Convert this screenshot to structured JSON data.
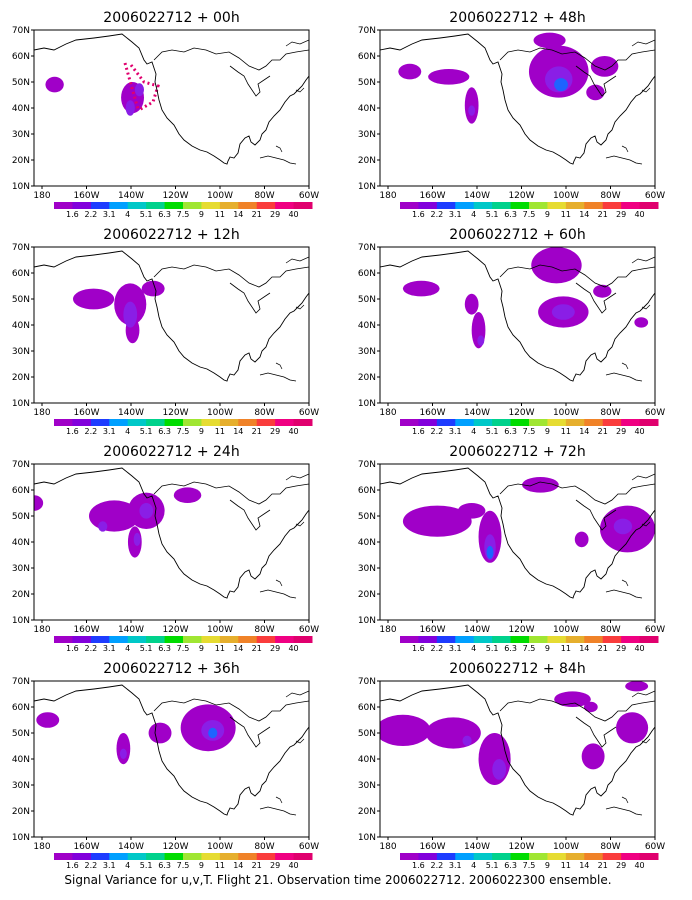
{
  "figure": {
    "caption": "Signal Variance for u,v,T. Flight 21. Observation time 2006022712. 2006022300 ensemble."
  },
  "map": {
    "lon_ticks": [
      "180",
      "160W",
      "140W",
      "120W",
      "100W",
      "80W",
      "60W"
    ],
    "lat_ticks": [
      "10N",
      "20N",
      "30N",
      "40N",
      "50N",
      "60N",
      "70N"
    ],
    "lon_range": [
      -180,
      -60
    ],
    "lat_range": [
      10,
      70
    ]
  },
  "colorbar": {
    "levels": [
      "1.6",
      "2.2",
      "3.1",
      "4",
      "5.1",
      "6.3",
      "7.5",
      "9",
      "11",
      "14",
      "21",
      "29",
      "40"
    ],
    "colors": [
      "#a000c8",
      "#8200dc",
      "#1e3cff",
      "#00a0ff",
      "#00c8c8",
      "#00d28c",
      "#00dc00",
      "#a0e632",
      "#e6dc32",
      "#e6af2d",
      "#f08228",
      "#fa3c3c",
      "#f00082",
      "#e0006e"
    ]
  },
  "panels": [
    {
      "title": "2006022712 + 00h",
      "blobs": [
        {
          "lon": -171,
          "lat": 49,
          "rx": 4,
          "ry": 3,
          "level": 0
        },
        {
          "lon": -137,
          "lat": 44,
          "rx": 5,
          "ry": 6,
          "level": 0
        },
        {
          "lon": -138,
          "lat": 40,
          "rx": 2,
          "ry": 3,
          "level": 1
        },
        {
          "lon": -134,
          "lat": 47,
          "rx": 2,
          "ry": 2.5,
          "level": 1
        }
      ]
    },
    {
      "title": "2006022712 + 48h",
      "blobs": [
        {
          "lon": -167,
          "lat": 54,
          "rx": 5,
          "ry": 3,
          "level": 0
        },
        {
          "lon": -150,
          "lat": 52,
          "rx": 9,
          "ry": 3,
          "level": 0
        },
        {
          "lon": -140,
          "lat": 41,
          "rx": 3,
          "ry": 7,
          "level": 0
        },
        {
          "lon": -140,
          "lat": 39,
          "rx": 1.5,
          "ry": 2,
          "level": 1
        },
        {
          "lon": -102,
          "lat": 54,
          "rx": 13,
          "ry": 10,
          "level": 0
        },
        {
          "lon": -102,
          "lat": 51,
          "rx": 6,
          "ry": 5,
          "level": 1
        },
        {
          "lon": -101,
          "lat": 49,
          "rx": 3,
          "ry": 2.5,
          "level": 2
        },
        {
          "lon": -106,
          "lat": 66,
          "rx": 7,
          "ry": 3,
          "level": 0
        },
        {
          "lon": -82,
          "lat": 56,
          "rx": 6,
          "ry": 4,
          "level": 0
        },
        {
          "lon": -86,
          "lat": 46,
          "rx": 4,
          "ry": 3,
          "level": 0
        }
      ]
    },
    {
      "title": "2006022712 + 12h",
      "blobs": [
        {
          "lon": -154,
          "lat": 50,
          "rx": 9,
          "ry": 4,
          "level": 0
        },
        {
          "lon": -138,
          "lat": 48,
          "rx": 7,
          "ry": 8,
          "level": 0
        },
        {
          "lon": -137,
          "lat": 38,
          "rx": 3,
          "ry": 5,
          "level": 0
        },
        {
          "lon": -138,
          "lat": 44,
          "rx": 3,
          "ry": 5,
          "level": 1
        },
        {
          "lon": -128,
          "lat": 54,
          "rx": 5,
          "ry": 3,
          "level": 0
        }
      ]
    },
    {
      "title": "2006022712 + 60h",
      "blobs": [
        {
          "lon": -162,
          "lat": 54,
          "rx": 8,
          "ry": 3,
          "level": 0
        },
        {
          "lon": -140,
          "lat": 48,
          "rx": 3,
          "ry": 4,
          "level": 0
        },
        {
          "lon": -137,
          "lat": 38,
          "rx": 3,
          "ry": 7,
          "level": 0
        },
        {
          "lon": -136,
          "lat": 34,
          "rx": 1.5,
          "ry": 2,
          "level": 1
        },
        {
          "lon": -103,
          "lat": 63,
          "rx": 11,
          "ry": 7,
          "level": 0
        },
        {
          "lon": -100,
          "lat": 45,
          "rx": 11,
          "ry": 6,
          "level": 0
        },
        {
          "lon": -100,
          "lat": 45,
          "rx": 5,
          "ry": 3,
          "level": 1
        },
        {
          "lon": -83,
          "lat": 53,
          "rx": 4,
          "ry": 2.5,
          "level": 0
        },
        {
          "lon": -66,
          "lat": 41,
          "rx": 3,
          "ry": 2,
          "level": 0
        }
      ]
    },
    {
      "title": "2006022712 + 24h",
      "blobs": [
        {
          "lon": -180,
          "lat": 55,
          "rx": 4,
          "ry": 3,
          "level": 0
        },
        {
          "lon": -145,
          "lat": 50,
          "rx": 11,
          "ry": 6,
          "level": 0
        },
        {
          "lon": -150,
          "lat": 46,
          "rx": 2,
          "ry": 2,
          "level": 1
        },
        {
          "lon": -131,
          "lat": 52,
          "rx": 8,
          "ry": 7,
          "level": 0
        },
        {
          "lon": -131,
          "lat": 52,
          "rx": 3,
          "ry": 3,
          "level": 1
        },
        {
          "lon": -136,
          "lat": 40,
          "rx": 3,
          "ry": 6,
          "level": 0
        },
        {
          "lon": -135,
          "lat": 41,
          "rx": 1.5,
          "ry": 2.5,
          "level": 1
        },
        {
          "lon": -113,
          "lat": 58,
          "rx": 6,
          "ry": 3,
          "level": 0
        }
      ]
    },
    {
      "title": "2006022712 + 72h",
      "blobs": [
        {
          "lon": -155,
          "lat": 48,
          "rx": 15,
          "ry": 6,
          "level": 0
        },
        {
          "lon": -132,
          "lat": 42,
          "rx": 5,
          "ry": 10,
          "level": 0
        },
        {
          "lon": -132,
          "lat": 38,
          "rx": 2.5,
          "ry": 5,
          "level": 1
        },
        {
          "lon": -132,
          "lat": 36,
          "rx": 1.5,
          "ry": 2.5,
          "level": 2
        },
        {
          "lon": -140,
          "lat": 52,
          "rx": 6,
          "ry": 3,
          "level": 0
        },
        {
          "lon": -110,
          "lat": 62,
          "rx": 8,
          "ry": 3,
          "level": 0
        },
        {
          "lon": -72,
          "lat": 45,
          "rx": 12,
          "ry": 9,
          "level": 0
        },
        {
          "lon": -74,
          "lat": 46,
          "rx": 4,
          "ry": 3,
          "level": 1
        },
        {
          "lon": -92,
          "lat": 41,
          "rx": 3,
          "ry": 3,
          "level": 0
        }
      ]
    },
    {
      "title": "2006022712 + 36h",
      "blobs": [
        {
          "lon": -174,
          "lat": 55,
          "rx": 5,
          "ry": 3,
          "level": 0
        },
        {
          "lon": -141,
          "lat": 44,
          "rx": 3,
          "ry": 6,
          "level": 0
        },
        {
          "lon": -141,
          "lat": 42,
          "rx": 1.5,
          "ry": 2,
          "level": 1
        },
        {
          "lon": -125,
          "lat": 50,
          "rx": 5,
          "ry": 4,
          "level": 0
        },
        {
          "lon": -104,
          "lat": 52,
          "rx": 12,
          "ry": 9,
          "level": 0
        },
        {
          "lon": -102,
          "lat": 51,
          "rx": 5,
          "ry": 4,
          "level": 1
        },
        {
          "lon": -102,
          "lat": 50,
          "rx": 2,
          "ry": 2,
          "level": 2
        }
      ]
    },
    {
      "title": "2006022712 + 84h",
      "blobs": [
        {
          "lon": -170,
          "lat": 51,
          "rx": 12,
          "ry": 6,
          "level": 0
        },
        {
          "lon": -148,
          "lat": 50,
          "rx": 12,
          "ry": 6,
          "level": 0
        },
        {
          "lon": -130,
          "lat": 40,
          "rx": 7,
          "ry": 10,
          "level": 0
        },
        {
          "lon": -128,
          "lat": 36,
          "rx": 3,
          "ry": 4,
          "level": 1
        },
        {
          "lon": -142,
          "lat": 47,
          "rx": 2,
          "ry": 2,
          "level": 1
        },
        {
          "lon": -96,
          "lat": 63,
          "rx": 8,
          "ry": 3,
          "level": 0
        },
        {
          "lon": -88,
          "lat": 60,
          "rx": 3,
          "ry": 2,
          "level": 0
        },
        {
          "lon": -87,
          "lat": 41,
          "rx": 5,
          "ry": 5,
          "level": 0
        },
        {
          "lon": -70,
          "lat": 52,
          "rx": 7,
          "ry": 6,
          "level": 0
        },
        {
          "lon": -68,
          "lat": 68,
          "rx": 5,
          "ry": 2,
          "level": 0
        }
      ]
    }
  ]
}
